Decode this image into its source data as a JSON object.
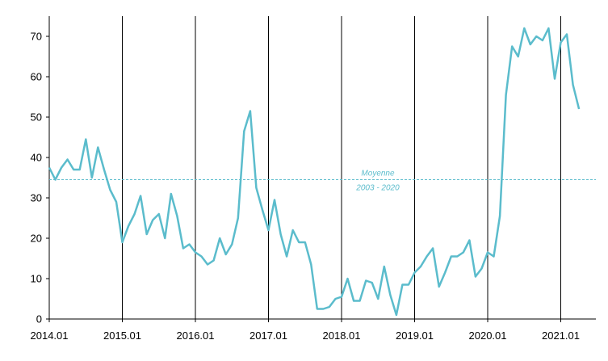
{
  "chart_data": {
    "type": "line",
    "title": "",
    "xlabel": "",
    "ylabel": "",
    "x_ticks": [
      "2014.01",
      "2015.01",
      "2016.01",
      "2017.01",
      "2018.01",
      "2019.01",
      "2020.01",
      "2021.01"
    ],
    "y_ticks": [
      0,
      10,
      20,
      30,
      40,
      50,
      60,
      70
    ],
    "ylim": [
      0,
      75
    ],
    "xlim": [
      "2014-01",
      "2021-05"
    ],
    "grid": "vertical lines at each year start",
    "series": [
      {
        "color": "#5bbccc",
        "x": [
          "2014-01",
          "2014-02",
          "2014-03",
          "2014-04",
          "2014-05",
          "2014-06",
          "2014-07",
          "2014-08",
          "2014-09",
          "2014-10",
          "2014-11",
          "2014-12",
          "2015-01",
          "2015-02",
          "2015-03",
          "2015-04",
          "2015-05",
          "2015-06",
          "2015-07",
          "2015-08",
          "2015-09",
          "2015-10",
          "2015-11",
          "2015-12",
          "2016-01",
          "2016-02",
          "2016-03",
          "2016-04",
          "2016-05",
          "2016-06",
          "2016-07",
          "2016-08",
          "2016-09",
          "2016-10",
          "2016-11",
          "2016-12",
          "2017-01",
          "2017-02",
          "2017-03",
          "2017-04",
          "2017-05",
          "2017-06",
          "2017-07",
          "2017-08",
          "2017-09",
          "2017-10",
          "2017-11",
          "2017-12",
          "2018-01",
          "2018-02",
          "2018-03",
          "2018-04",
          "2018-05",
          "2018-06",
          "2018-07",
          "2018-08",
          "2018-09",
          "2018-10",
          "2018-11",
          "2018-12",
          "2019-01",
          "2019-02",
          "2019-03",
          "2019-04",
          "2019-05",
          "2019-06",
          "2019-07",
          "2019-08",
          "2019-09",
          "2019-10",
          "2019-11",
          "2019-12",
          "2020-01",
          "2020-02",
          "2020-03",
          "2020-04",
          "2020-05",
          "2020-06",
          "2020-07",
          "2020-08",
          "2020-09",
          "2020-10",
          "2020-11",
          "2020-12",
          "2021-01",
          "2021-02",
          "2021-03",
          "2021-04"
        ],
        "values": [
          37.5,
          34.5,
          37.5,
          39.5,
          37.0,
          37.0,
          44.5,
          35.0,
          42.5,
          37.0,
          32.0,
          29.0,
          19.0,
          23.0,
          26.0,
          30.5,
          21.0,
          24.5,
          26.0,
          20.0,
          31.0,
          25.5,
          17.5,
          18.5,
          16.5,
          15.5,
          13.5,
          14.5,
          20.0,
          16.0,
          18.5,
          25.0,
          46.5,
          51.5,
          32.5,
          27.0,
          22.0,
          29.5,
          21.0,
          15.5,
          22.0,
          19.0,
          19.0,
          13.5,
          2.5,
          2.5,
          3.0,
          5.0,
          5.5,
          10.0,
          4.5,
          4.5,
          9.5,
          9.0,
          5.0,
          13.0,
          6.0,
          1.0,
          8.5,
          8.5,
          11.5,
          13.0,
          15.5,
          17.5,
          8.0,
          11.5,
          15.5,
          15.5,
          16.5,
          19.5,
          10.5,
          12.5,
          16.5,
          15.5,
          25.5,
          55.5,
          67.5,
          65.0,
          72.0,
          68.0,
          70.0,
          69.0,
          72.0,
          59.5,
          68.5,
          70.5,
          58.0,
          52.0
        ]
      }
    ],
    "reference_line": {
      "value": 34.5,
      "color": "#5bbccc",
      "label_line1": "Moyenne",
      "label_line2": "2003 - 2020"
    }
  }
}
